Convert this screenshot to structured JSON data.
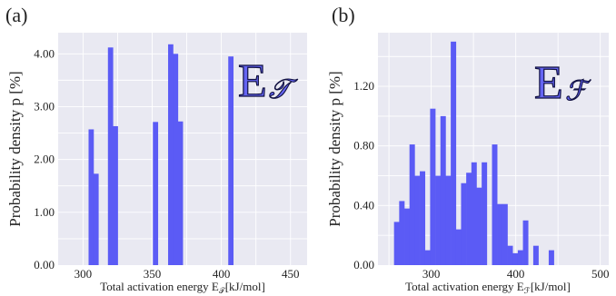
{
  "chart_data": [
    {
      "type": "bar",
      "panel_label": "(a)",
      "annotation": "E",
      "annotation_sub": "𝒯",
      "xlabel_main": "Total activation energy E",
      "xlabel_sub": "𝒯",
      "xlabel_unit": "[kJ/mol]",
      "ylabel": "Probability density p [%]",
      "xlim": [
        282,
        462
      ],
      "ylim": [
        0,
        4.4
      ],
      "x_ticks": [
        300,
        350,
        400,
        450
      ],
      "y_ticks": [
        0,
        1,
        2,
        3,
        4
      ],
      "y_tick_labels": [
        "0.00",
        "1.00",
        "2.00",
        "3.00",
        "4.00"
      ],
      "bin_width": 3.6,
      "grid": true,
      "bars": [
        {
          "x": 304.0,
          "value": 2.57
        },
        {
          "x": 307.5,
          "value": 1.73
        },
        {
          "x": 318.0,
          "value": 4.12
        },
        {
          "x": 321.5,
          "value": 2.63
        },
        {
          "x": 350.5,
          "value": 2.71
        },
        {
          "x": 361.5,
          "value": 4.18
        },
        {
          "x": 365.0,
          "value": 4.0
        },
        {
          "x": 368.5,
          "value": 2.72
        },
        {
          "x": 405.0,
          "value": 3.95
        }
      ]
    },
    {
      "type": "bar",
      "panel_label": "(b)",
      "annotation": "E",
      "annotation_sub": "ℱ",
      "xlabel_main": "Total activation energy E",
      "xlabel_sub": "ℱ",
      "xlabel_unit": "[kJ/mol]",
      "ylabel": "Probability density p [%]",
      "xlim": [
        237,
        510
      ],
      "ylim": [
        0,
        1.56
      ],
      "x_ticks": [
        300,
        400,
        500
      ],
      "y_ticks": [
        0,
        0.4,
        0.8,
        1.2
      ],
      "y_tick_labels": [
        "0.00",
        "0.40",
        "0.80",
        "1.20"
      ],
      "bin_width": 6.1,
      "grid": true,
      "bars": [
        {
          "x": 256.0,
          "value": 0.29
        },
        {
          "x": 262.1,
          "value": 0.43
        },
        {
          "x": 268.2,
          "value": 0.38
        },
        {
          "x": 274.3,
          "value": 0.81
        },
        {
          "x": 280.4,
          "value": 0.6
        },
        {
          "x": 286.5,
          "value": 0.63
        },
        {
          "x": 292.6,
          "value": 0.1
        },
        {
          "x": 298.7,
          "value": 1.05
        },
        {
          "x": 304.8,
          "value": 0.6
        },
        {
          "x": 310.9,
          "value": 1.0
        },
        {
          "x": 317.0,
          "value": 0.6
        },
        {
          "x": 323.1,
          "value": 1.5
        },
        {
          "x": 329.2,
          "value": 0.24
        },
        {
          "x": 335.3,
          "value": 0.55
        },
        {
          "x": 341.4,
          "value": 0.62
        },
        {
          "x": 347.5,
          "value": 0.69
        },
        {
          "x": 353.6,
          "value": 0.52
        },
        {
          "x": 359.7,
          "value": 0.69
        },
        {
          "x": 365.8,
          "value": 0.0
        },
        {
          "x": 371.9,
          "value": 0.81
        },
        {
          "x": 378.0,
          "value": 0.41
        },
        {
          "x": 384.1,
          "value": 0.41
        },
        {
          "x": 390.2,
          "value": 0.13
        },
        {
          "x": 396.3,
          "value": 0.08
        },
        {
          "x": 402.4,
          "value": 0.1
        },
        {
          "x": 408.5,
          "value": 0.3
        },
        {
          "x": 420.7,
          "value": 0.13
        },
        {
          "x": 439.0,
          "value": 0.1
        }
      ]
    }
  ]
}
